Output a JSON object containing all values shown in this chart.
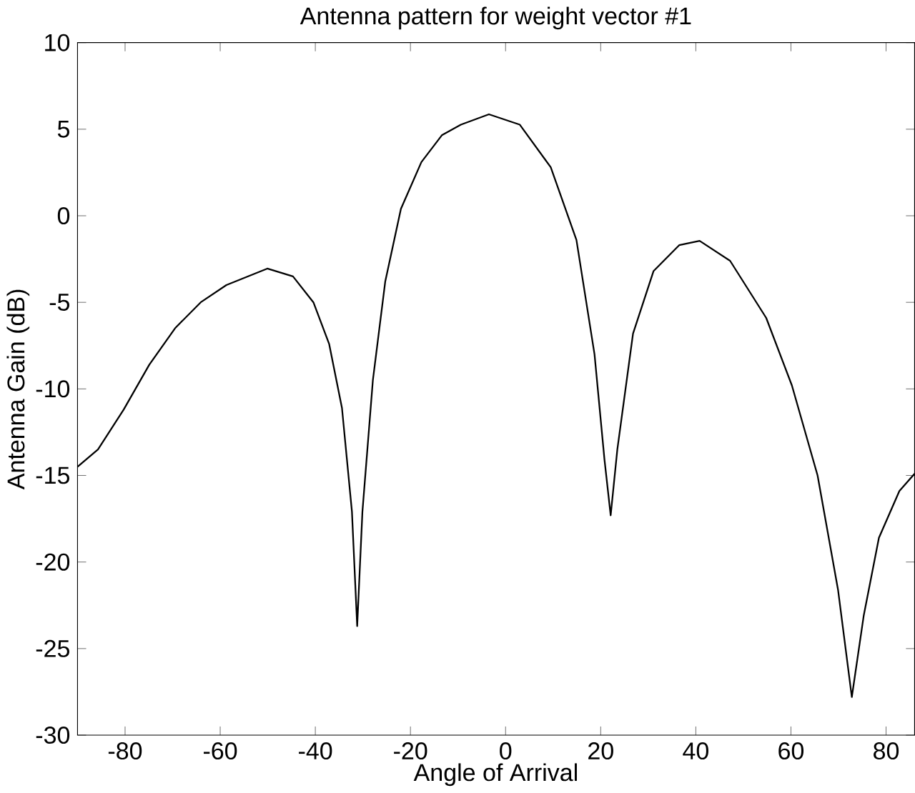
{
  "chart_data": {
    "type": "line",
    "title": "Antenna pattern for weight vector #1",
    "xlabel": "Angle of Arrival",
    "ylabel": "Antenna Gain (dB)",
    "xlim": [
      -90,
      86
    ],
    "ylim": [
      -30,
      10
    ],
    "xticks": [
      -80,
      -60,
      -40,
      -20,
      0,
      20,
      40,
      60,
      80
    ],
    "yticks": [
      -30,
      -25,
      -20,
      -15,
      -10,
      -5,
      0,
      5,
      10
    ],
    "series": [
      {
        "color": "#000000",
        "x": [
          -90,
          -85.7,
          -80.3,
          -74.9,
          -69.5,
          -64.1,
          -58.7,
          -50.1,
          -44.7,
          -40.4,
          -37.1,
          -34.4,
          -32.3,
          -31.2,
          -30.1,
          -27.9,
          -25.3,
          -22.0,
          -17.7,
          -13.4,
          -9.4,
          -3.5,
          3.0,
          9.5,
          14.9,
          18.7,
          20.8,
          22.1,
          23.5,
          26.8,
          31.1,
          36.5,
          40.8,
          47.2,
          54.8,
          60.2,
          65.6,
          69.9,
          72.8,
          75.3,
          78.5,
          82.8,
          86
        ],
        "values": [
          -14.5,
          -13.5,
          -11.2,
          -8.6,
          -6.5,
          -5.0,
          -4.0,
          -3.05,
          -3.5,
          -5.0,
          -7.4,
          -11.1,
          -17.1,
          -23.7,
          -17.1,
          -9.5,
          -3.8,
          0.4,
          3.1,
          4.65,
          5.26,
          5.86,
          5.26,
          2.8,
          -1.4,
          -8.0,
          -14.1,
          -17.3,
          -13.5,
          -6.8,
          -3.2,
          -1.7,
          -1.45,
          -2.6,
          -5.9,
          -9.8,
          -15.0,
          -21.6,
          -27.8,
          -23.1,
          -18.6,
          -15.9,
          -14.9
        ]
      }
    ]
  }
}
